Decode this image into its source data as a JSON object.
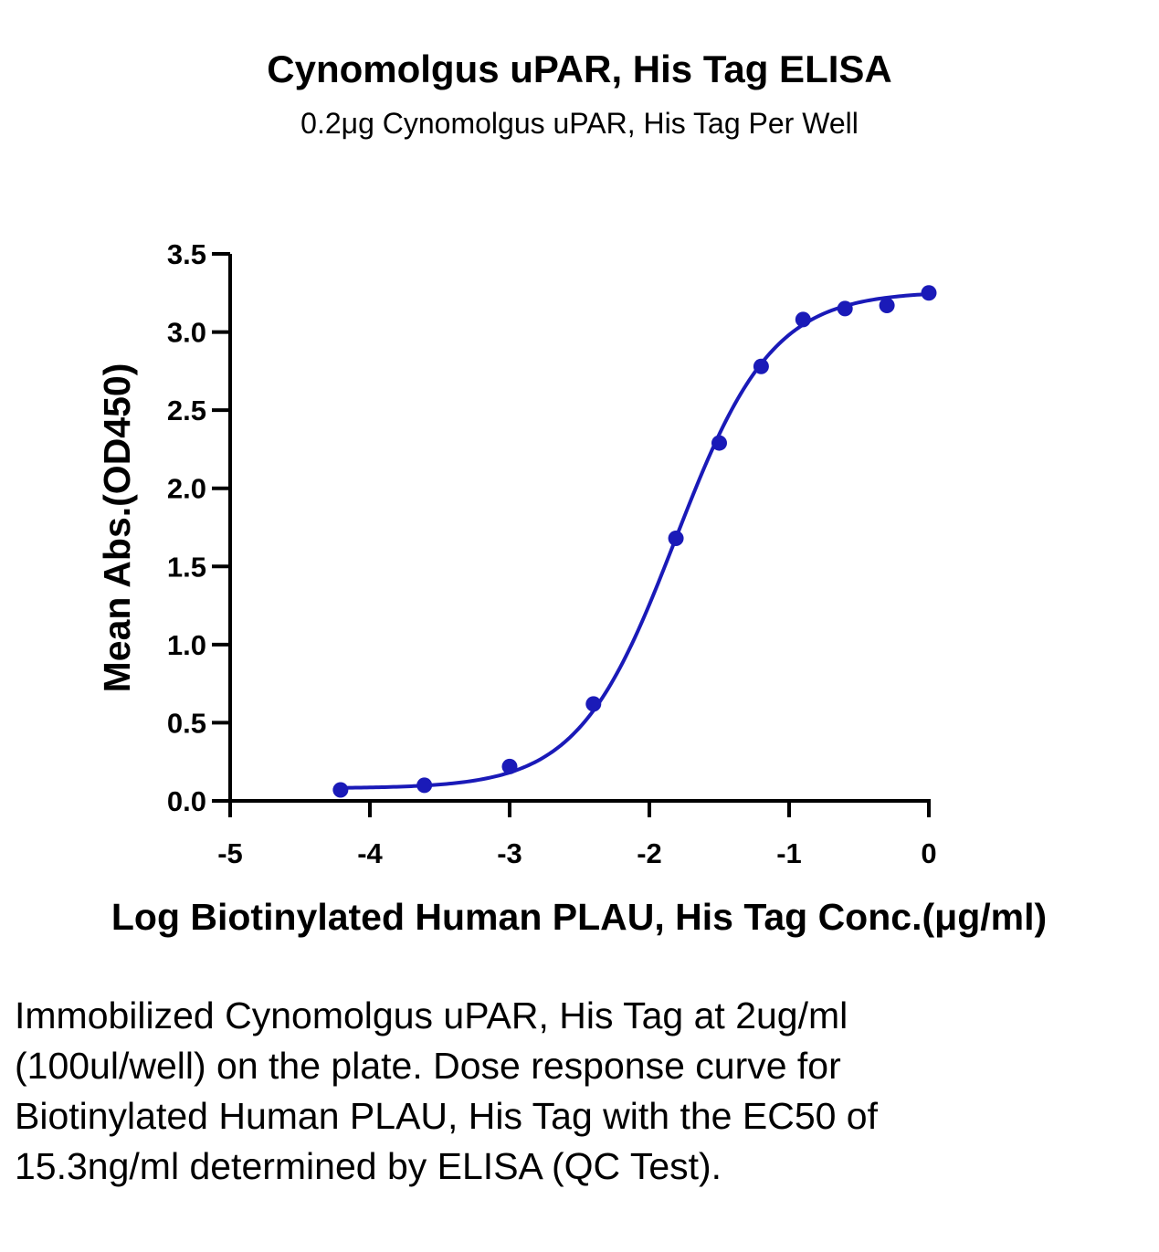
{
  "chart_data": {
    "type": "scatter",
    "title": "Cynomolgus uPAR, His Tag ELISA",
    "subtitle": "0.2μg Cynomolgus uPAR, His Tag Per Well",
    "xlabel": "Log Biotinylated Human PLAU, His Tag Conc.(μg/ml)",
    "ylabel": "Mean Abs.(OD450)",
    "xlim": [
      -5,
      0
    ],
    "ylim": [
      0,
      3.5
    ],
    "xticks": [
      "-5",
      "-4",
      "-3",
      "-2",
      "-1",
      "0"
    ],
    "yticks": [
      "0.0",
      "0.5",
      "1.0",
      "1.5",
      "2.0",
      "2.5",
      "3.0",
      "3.5"
    ],
    "grid": false,
    "color": "#1a1ab8",
    "series": [
      {
        "x": [
          -4.21,
          -3.61,
          -3.0,
          -2.4,
          -1.81,
          -1.5,
          -1.2,
          -0.9,
          -0.6,
          -0.3,
          0.0
        ],
        "y": [
          0.07,
          0.1,
          0.22,
          0.62,
          1.68,
          2.29,
          2.78,
          3.08,
          3.15,
          3.17,
          3.25
        ]
      }
    ],
    "fit": {
      "type": "4PL",
      "bottom": 0.08,
      "top": 3.26,
      "logEC50": -1.815,
      "hill": 1.25
    }
  },
  "caption": "Immobilized Cynomolgus uPAR, His Tag at 2ug/ml (100ul/well) on the plate. Dose response curve for Biotinylated Human PLAU, His Tag with the EC50 of 15.3ng/ml determined by ELISA (QC Test)."
}
